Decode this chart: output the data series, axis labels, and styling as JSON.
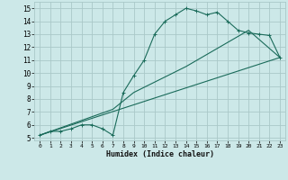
{
  "title": "",
  "xlabel": "Humidex (Indice chaleur)",
  "bg_color": "#cce8e8",
  "grid_color": "#aac8c8",
  "line_color": "#1a6b5a",
  "xlim": [
    -0.5,
    23.5
  ],
  "ylim": [
    4.8,
    15.5
  ],
  "xticks": [
    0,
    1,
    2,
    3,
    4,
    5,
    6,
    7,
    8,
    9,
    10,
    11,
    12,
    13,
    14,
    15,
    16,
    17,
    18,
    19,
    20,
    21,
    22,
    23
  ],
  "yticks": [
    5,
    6,
    7,
    8,
    9,
    10,
    11,
    12,
    13,
    14,
    15
  ],
  "line1_x": [
    0,
    1,
    2,
    3,
    4,
    5,
    6,
    7,
    8,
    9,
    10,
    11,
    12,
    13,
    14,
    15,
    16,
    17,
    18,
    19,
    20,
    21,
    22,
    23
  ],
  "line1_y": [
    5.2,
    5.5,
    5.5,
    5.7,
    6.0,
    6.0,
    5.7,
    5.2,
    8.5,
    9.8,
    11.0,
    13.0,
    14.0,
    14.5,
    15.0,
    14.8,
    14.5,
    14.7,
    14.0,
    13.3,
    13.1,
    13.0,
    12.9,
    11.2
  ],
  "line2_x": [
    0,
    23
  ],
  "line2_y": [
    5.2,
    11.2
  ],
  "line3_x": [
    0,
    7,
    9,
    14,
    20,
    23
  ],
  "line3_y": [
    5.2,
    7.2,
    8.5,
    10.5,
    13.3,
    11.2
  ]
}
